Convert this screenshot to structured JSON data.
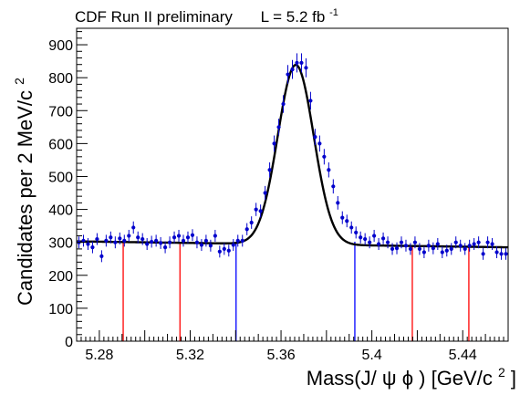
{
  "chart_data": {
    "type": "scatter",
    "title_parts": {
      "experiment": "CDF Run II preliminary",
      "lumi_prefix": "L = 5.2 fb",
      "lumi_exp": "-1"
    },
    "xlabel_parts": {
      "base": "Mass(J/",
      "psi": "ψ",
      "mid": " ",
      "phi": "ϕ",
      "unit_open": ") [GeV/c",
      "unit_exp": "2",
      "unit_close": "]"
    },
    "ylabel_parts": {
      "base": "Candidates per 2 MeV/c",
      "exp": "2"
    },
    "xlim": [
      5.27,
      5.46
    ],
    "ylim": [
      0,
      950
    ],
    "x_ticks": [
      5.28,
      5.32,
      5.36,
      5.4,
      5.44
    ],
    "x_tick_labels": [
      "5.28",
      "5.32",
      "5.36",
      "5.4",
      "5.44"
    ],
    "y_ticks": [
      0,
      100,
      200,
      300,
      400,
      500,
      600,
      700,
      800,
      900
    ],
    "y_tick_labels": [
      "0",
      "100",
      "200",
      "300",
      "400",
      "500",
      "600",
      "700",
      "800",
      "900"
    ],
    "series": [
      {
        "role": "data",
        "x": [
          5.271,
          5.273,
          5.275,
          5.277,
          5.279,
          5.281,
          5.283,
          5.285,
          5.287,
          5.289,
          5.291,
          5.293,
          5.295,
          5.297,
          5.299,
          5.301,
          5.303,
          5.305,
          5.307,
          5.309,
          5.311,
          5.313,
          5.315,
          5.317,
          5.319,
          5.321,
          5.323,
          5.325,
          5.327,
          5.329,
          5.331,
          5.333,
          5.335,
          5.337,
          5.339,
          5.341,
          5.343,
          5.345,
          5.347,
          5.349,
          5.351,
          5.353,
          5.355,
          5.357,
          5.359,
          5.361,
          5.363,
          5.365,
          5.367,
          5.369,
          5.371,
          5.373,
          5.375,
          5.377,
          5.379,
          5.381,
          5.383,
          5.385,
          5.387,
          5.389,
          5.391,
          5.393,
          5.395,
          5.397,
          5.399,
          5.401,
          5.403,
          5.405,
          5.407,
          5.409,
          5.411,
          5.413,
          5.415,
          5.417,
          5.419,
          5.421,
          5.423,
          5.425,
          5.427,
          5.429,
          5.431,
          5.433,
          5.435,
          5.437,
          5.439,
          5.441,
          5.443,
          5.445,
          5.447,
          5.449,
          5.451,
          5.453,
          5.455,
          5.457,
          5.459
        ],
        "y": [
          300,
          305,
          295,
          285,
          310,
          258,
          305,
          315,
          300,
          312,
          305,
          320,
          345,
          315,
          310,
          295,
          302,
          305,
          298,
          285,
          300,
          315,
          320,
          305,
          315,
          322,
          300,
          292,
          305,
          290,
          320,
          272,
          280,
          275,
          292,
          305,
          305,
          340,
          360,
          400,
          395,
          450,
          520,
          600,
          650,
          720,
          810,
          825,
          845,
          845,
          830,
          730,
          620,
          600,
          560,
          520,
          470,
          420,
          375,
          365,
          345,
          330,
          315,
          310,
          300,
          320,
          295,
          312,
          300,
          280,
          282,
          300,
          290,
          280,
          300,
          280,
          270,
          290,
          282,
          295,
          270,
          275,
          280,
          300,
          290,
          280,
          290,
          295,
          300,
          265,
          300,
          295,
          270,
          265,
          265
        ],
        "yerr": 18
      },
      {
        "role": "fit",
        "baseline_left": 303,
        "baseline_right": 285,
        "peak_mean": 5.3665,
        "peak_sigma": 0.0079,
        "peak_amplitude": 545
      }
    ],
    "markers": [
      {
        "x": 5.2905,
        "y_top": 300,
        "color": "#ff0000"
      },
      {
        "x": 5.3155,
        "y_top": 300,
        "color": "#ff0000"
      },
      {
        "x": 5.3402,
        "y_top": 302,
        "color": "#0000ff"
      },
      {
        "x": 5.3925,
        "y_top": 302,
        "color": "#0000ff"
      },
      {
        "x": 5.4178,
        "y_top": 290,
        "color": "#ff0000"
      },
      {
        "x": 5.4427,
        "y_top": 290,
        "color": "#ff0000"
      }
    ],
    "colors": {
      "data": "#0000cc",
      "fit": "#000000",
      "sideband": "#ff0000",
      "signal": "#0000ff"
    },
    "grid": false,
    "legend": "none"
  }
}
